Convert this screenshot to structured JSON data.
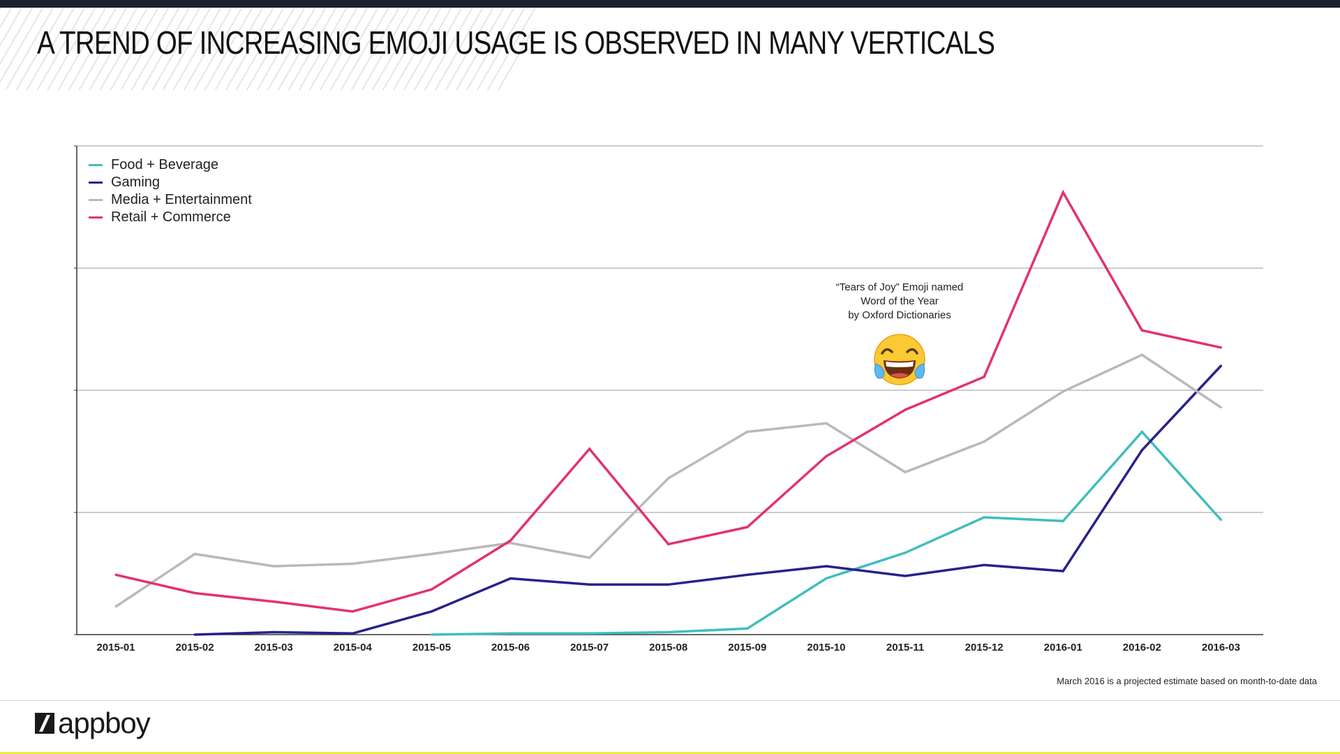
{
  "header": {
    "title": "A TREND OF INCREASING EMOJI USAGE IS OBSERVED IN MANY VERTICALS"
  },
  "chart_data": {
    "type": "line",
    "title": "A TREND OF INCREASING EMOJI USAGE IS OBSERVED IN MANY VERTICALS",
    "xlabel": "",
    "ylabel": "",
    "categories": [
      "2015-01",
      "2015-02",
      "2015-03",
      "2015-04",
      "2015-05",
      "2015-06",
      "2015-07",
      "2015-08",
      "2015-09",
      "2015-10",
      "2015-11",
      "2015-12",
      "2016-01",
      "2016-02",
      "2016-03"
    ],
    "ylim": [
      0,
      4
    ],
    "grid": true,
    "legend_position": "top-left",
    "series": [
      {
        "name": "Food + Beverage",
        "color": "#41bdbd",
        "values": [
          null,
          null,
          null,
          null,
          0.0,
          0.01,
          0.01,
          0.02,
          0.05,
          0.46,
          0.67,
          0.96,
          0.93,
          1.66,
          0.94
        ]
      },
      {
        "name": "Gaming",
        "color": "#27228a",
        "values": [
          null,
          0.0,
          0.02,
          0.01,
          0.19,
          0.46,
          0.41,
          0.41,
          0.49,
          0.56,
          0.48,
          0.57,
          0.52,
          1.51,
          2.2
        ]
      },
      {
        "name": "Media + Entertainment",
        "color": "#b9b9b9",
        "values": [
          0.23,
          0.66,
          0.56,
          0.58,
          0.66,
          0.75,
          0.63,
          1.28,
          1.66,
          1.73,
          1.33,
          1.58,
          1.99,
          2.29,
          1.86
        ]
      },
      {
        "name": "Retail + Commerce",
        "color": "#e2336b",
        "values": [
          0.49,
          0.34,
          0.27,
          0.19,
          0.37,
          0.77,
          1.52,
          0.74,
          0.88,
          1.46,
          1.84,
          2.11,
          3.62,
          2.49,
          2.35
        ]
      }
    ],
    "annotations": [
      {
        "x": "2015-11",
        "lines": [
          "“Tears of Joy” Emoji named",
          "Word of the Year",
          "by Oxford Dictionaries"
        ]
      }
    ]
  },
  "annotation": {
    "line1": "“Tears of Joy” Emoji named",
    "line2": "Word of the Year",
    "line3": "by Oxford Dictionaries",
    "emoji_icon": "face-with-tears-of-joy"
  },
  "footnote": "March 2016 is a projected estimate based on month-to-date data",
  "brand": {
    "logo_text": "appboy"
  },
  "colors": {
    "top_bar": "#1a2230",
    "bottom_bar": "#ecef3c",
    "grid": "#999999"
  }
}
